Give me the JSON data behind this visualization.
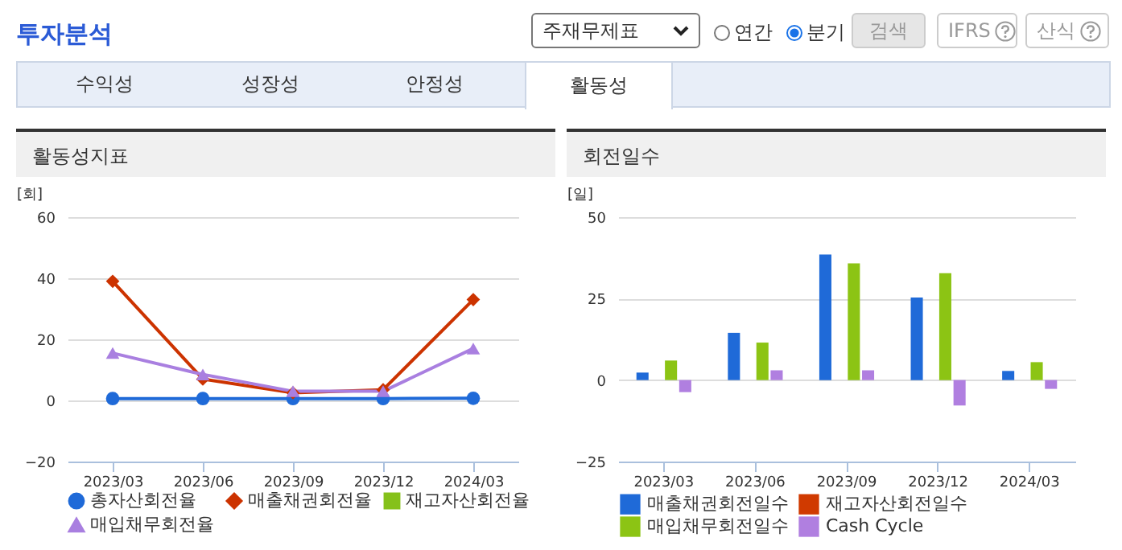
{
  "chart_data": [
    {
      "type": "other",
      "annotations": [
        "투자분석",
        "주재무제표",
        "연간",
        "분기",
        "검색",
        "IFRS",
        "산식",
        "수익성",
        "성장성",
        "안정성",
        "활동성"
      ]
    },
    {
      "type": "line",
      "title": "활동성지표",
      "ylabel": "[회]",
      "categories": [
        "2023/03",
        "2023/06",
        "2023/09",
        "2023/12",
        "2024/03"
      ],
      "ylim": [
        -20,
        60
      ],
      "yticks": [
        -20,
        0,
        20,
        40,
        60
      ],
      "grid": "y",
      "legend": "bottom",
      "series": [
        {
          "name": "총자산회전율",
          "color": "#1f6ad8",
          "marker": "circle",
          "values": [
            0.6,
            0.6,
            0.6,
            0.6,
            0.7
          ]
        },
        {
          "name": "매출채권회전율",
          "color": "#cc3300",
          "marker": "diamond",
          "values": [
            39,
            7,
            2.5,
            3.5,
            33
          ]
        },
        {
          "name": "재고자산회전율",
          "color": "#85c11a",
          "marker": "square",
          "values": [
            null,
            null,
            null,
            null,
            null
          ]
        },
        {
          "name": "매입채무회전율",
          "color": "#a97fe0",
          "marker": "triangle",
          "values": [
            15.5,
            8.5,
            3,
            3,
            17
          ]
        }
      ]
    },
    {
      "type": "bar",
      "title": "회전일수",
      "ylabel": "[일]",
      "categories": [
        "2023/03",
        "2023/06",
        "2023/09",
        "2023/12",
        "2024/03"
      ],
      "ylim": [
        -25,
        50
      ],
      "yticks": [
        -25,
        0,
        25,
        50
      ],
      "grid": "y",
      "legend": "bottom",
      "series": [
        {
          "name": "매출채권회전일수",
          "color": "#1f6ad8",
          "values": [
            2.3,
            14.5,
            38.5,
            25.3,
            2.8
          ]
        },
        {
          "name": "재고자산회전일수",
          "color": "#d03a00",
          "values": [
            null,
            null,
            null,
            null,
            null
          ]
        },
        {
          "name": "매입채무회전일수",
          "color": "#8cc414",
          "values": [
            6,
            11.5,
            35.8,
            32.8,
            5.5
          ]
        },
        {
          "name": "Cash Cycle",
          "color": "#b07fe0",
          "values": [
            -3.7,
            3,
            3,
            -7.8,
            -2.7
          ]
        }
      ]
    }
  ]
}
